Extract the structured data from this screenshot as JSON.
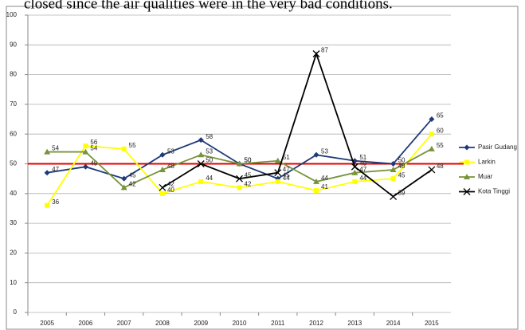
{
  "caption": "closed since the air qualities were in the very bad conditions.",
  "chart_data": {
    "type": "line",
    "categories": [
      "2005",
      "2006",
      "2007",
      "2008",
      "2009",
      "2010",
      "2011",
      "2012",
      "2013",
      "2014",
      "2015"
    ],
    "series": [
      {
        "name": "Pasir Gudang",
        "color": "#1f3a78",
        "marker": "diamond",
        "values": [
          47,
          49,
          45,
          53,
          58,
          50,
          45,
          53,
          51,
          50,
          65
        ]
      },
      {
        "name": "Larkin",
        "color": "#ffff00",
        "marker": "square",
        "values": [
          36,
          56,
          55,
          40,
          44,
          42,
          44,
          41,
          44,
          45,
          60
        ]
      },
      {
        "name": "Muar",
        "color": "#77933c",
        "marker": "triangle",
        "values": [
          54,
          54,
          42,
          48,
          53,
          50,
          51,
          44,
          47,
          48,
          55
        ]
      },
      {
        "name": "Kota Tinggi",
        "color": "#000000",
        "marker": "x",
        "values": [
          null,
          null,
          null,
          42,
          50,
          45,
          47,
          87,
          49,
          39,
          48
        ]
      }
    ],
    "ylim": [
      0,
      100
    ],
    "yticks": [
      0,
      10,
      20,
      30,
      40,
      50,
      60,
      70,
      80,
      90,
      100
    ],
    "grid": true,
    "reference_line": {
      "value": 50,
      "color": "#e00000"
    },
    "legend": "right"
  }
}
